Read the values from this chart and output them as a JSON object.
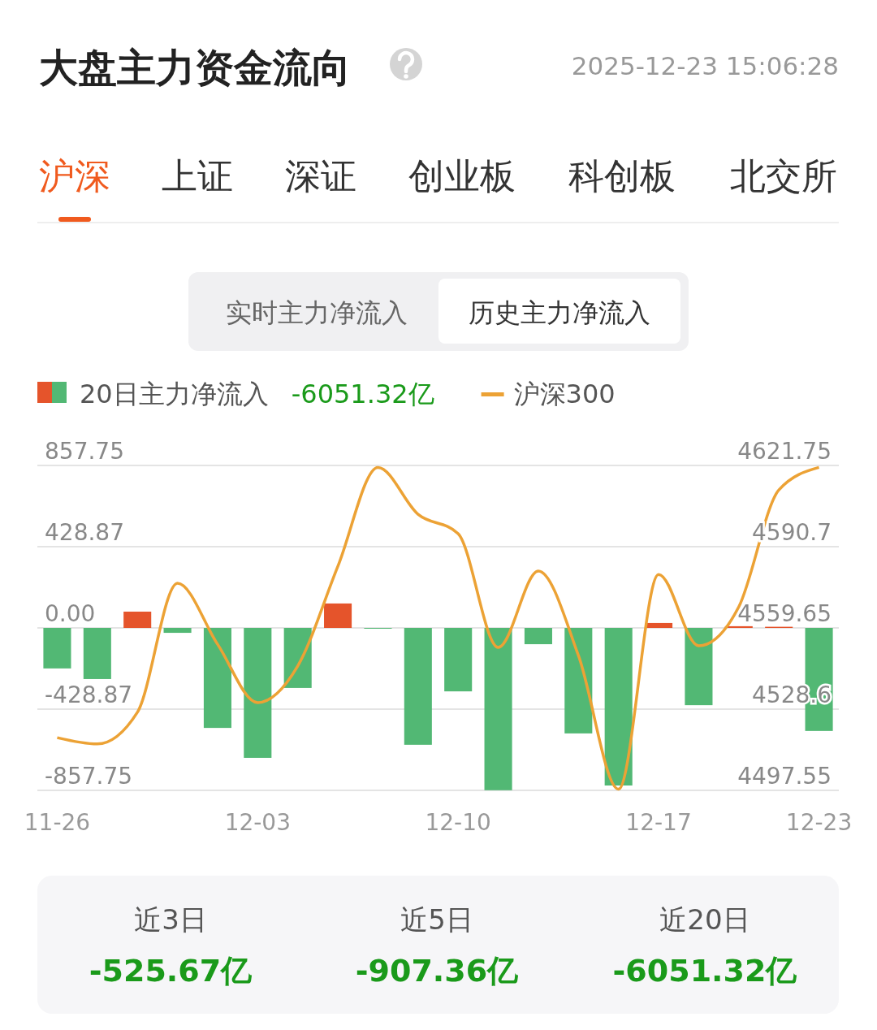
{
  "chart_data": {
    "type": "bar",
    "title": "大盘主力资金流向",
    "subtitle": "2025-12-23 15:06:28",
    "annotations": [
      "沪深",
      "上证",
      "深证",
      "创业板",
      "科创板",
      "北交所",
      "实时主力净流入",
      "历史主力净流入",
      "-6051.32亿",
      "近3日",
      "-525.67亿",
      "近5日",
      "-907.36亿",
      "近20日",
      "-6051.32亿"
    ],
    "categories": [
      "11-26",
      null,
      null,
      null,
      null,
      "12-03",
      null,
      null,
      null,
      null,
      "12-10",
      null,
      null,
      null,
      null,
      "12-17",
      null,
      null,
      null,
      "12-23"
    ],
    "series": [
      {
        "name": "20日主力净流入",
        "values": [
          -214,
          -270,
          86,
          -26,
          -528,
          -686,
          -317,
          129,
          -4,
          -617,
          -335,
          -857,
          -86,
          -557,
          -832,
          26,
          -408,
          9,
          6,
          -544
        ],
        "colors": [
          "#52b874",
          "#52b874",
          "#e5542b",
          "#52b874",
          "#52b874",
          "#52b874",
          "#52b874",
          "#e5542b",
          "#52b874",
          "#52b874",
          "#52b874",
          "#52b874",
          "#52b874",
          "#52b874",
          "#52b874",
          "#e5542b",
          "#52b874",
          "#e5542b",
          "#e5542b",
          "#52b874"
        ]
      },
      {
        "name": "沪深300",
        "type": "line",
        "axis": "y2",
        "color": "#eca235",
        "values": [
          4517.7,
          4515.3,
          4527.4,
          4576.7,
          4553.4,
          4531.1,
          4545.1,
          4583.2,
          4621,
          4603.1,
          4595.7,
          4552.2,
          4581.4,
          4549.1,
          4498,
          4580.1,
          4552.8,
          4567.7,
          4612.4,
          4621
        ]
      }
    ],
    "ylim": [
      -857.75,
      857.75
    ],
    "yticks": [
      "857.75",
      {
        "value": 428.87,
        "label": "428.87"
      },
      {
        "value": 0,
        "label": "0.00"
      },
      {
        "value": -428.87,
        "label": "-428.87"
      },
      {
        "value": -857.75,
        "label": "-857.75"
      }
    ],
    "y2lim": [
      4497.55,
      4621.75
    ],
    "y2ticks": [
      {
        "value": 4621.75,
        "label": "4621.75"
      },
      {
        "value": 4590.7,
        "label": "4590.7"
      },
      {
        "value": 4559.65,
        "label": "4559.65"
      },
      {
        "value": 4528.6,
        "label": "4528.6"
      },
      {
        "value": 4497.55,
        "label": "4497.55"
      }
    ],
    "grid": "y",
    "legend": "top left",
    "marker": "none"
  }
}
